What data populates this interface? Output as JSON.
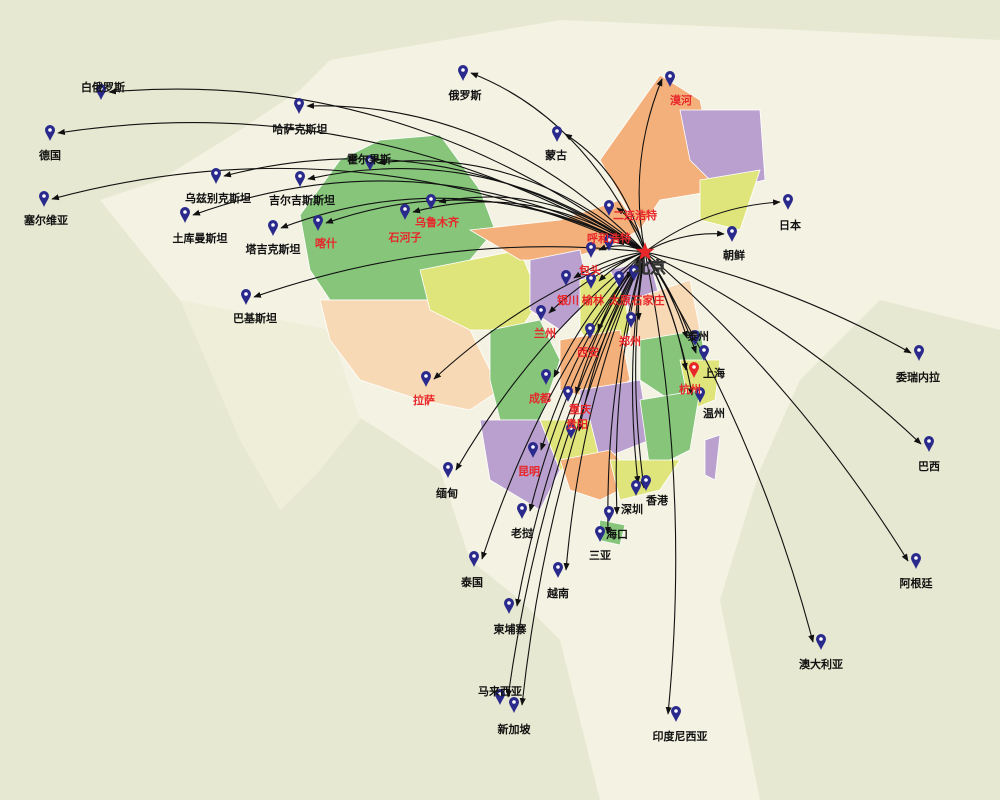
{
  "hub": {
    "name": "北京",
    "color": "#ffffff",
    "star_color": "#e8272a"
  },
  "colors": {
    "domestic_label": "#e8272a",
    "foreign_label": "#111111",
    "marker": "#2a2a8c",
    "highlight_marker": "#e8272a",
    "arrow": "#111111",
    "background": "#e7e8d1",
    "land": "#f3f2e3",
    "province_palette": [
      "#86c57a",
      "#f4b07a",
      "#b9a0cf",
      "#dfe57a",
      "#f8d9b6"
    ]
  },
  "cities": [
    {
      "name": "白俄罗斯",
      "type": "foreign"
    },
    {
      "name": "德国",
      "type": "foreign"
    },
    {
      "name": "塞尔维亚",
      "type": "foreign"
    },
    {
      "name": "哈萨克斯坦",
      "type": "foreign"
    },
    {
      "name": "俄罗斯",
      "type": "foreign"
    },
    {
      "name": "蒙古",
      "type": "foreign"
    },
    {
      "name": "霍尔果斯",
      "type": "foreign"
    },
    {
      "name": "乌兹别克斯坦",
      "type": "foreign"
    },
    {
      "name": "吉尔吉斯斯坦",
      "type": "foreign"
    },
    {
      "name": "土库曼斯坦",
      "type": "foreign"
    },
    {
      "name": "塔吉克斯坦",
      "type": "foreign"
    },
    {
      "name": "巴基斯坦",
      "type": "foreign"
    },
    {
      "name": "日本",
      "type": "foreign"
    },
    {
      "name": "朝鲜",
      "type": "foreign"
    },
    {
      "name": "泰州",
      "type": "foreign"
    },
    {
      "name": "上海",
      "type": "foreign"
    },
    {
      "name": "温州",
      "type": "foreign"
    },
    {
      "name": "委瑞内拉",
      "type": "foreign"
    },
    {
      "name": "巴西",
      "type": "foreign"
    },
    {
      "name": "阿根廷",
      "type": "foreign"
    },
    {
      "name": "澳大利亚",
      "type": "foreign"
    },
    {
      "name": "印度尼西亚",
      "type": "foreign"
    },
    {
      "name": "新加坡",
      "type": "foreign"
    },
    {
      "name": "马来西亚",
      "type": "foreign"
    },
    {
      "name": "柬埔寨",
      "type": "foreign"
    },
    {
      "name": "越南",
      "type": "foreign"
    },
    {
      "name": "泰国",
      "type": "foreign"
    },
    {
      "name": "缅甸",
      "type": "foreign"
    },
    {
      "name": "老挝",
      "type": "foreign"
    },
    {
      "name": "三亚",
      "type": "foreign"
    },
    {
      "name": "海口",
      "type": "foreign"
    },
    {
      "name": "深圳",
      "type": "foreign"
    },
    {
      "name": "香港",
      "type": "foreign"
    },
    {
      "name": "漠河",
      "type": "domestic"
    },
    {
      "name": "二连浩特",
      "type": "domestic"
    },
    {
      "name": "呼和浩特",
      "type": "domestic"
    },
    {
      "name": "包头",
      "type": "domestic"
    },
    {
      "name": "银川",
      "type": "domestic"
    },
    {
      "name": "榆林",
      "type": "domestic"
    },
    {
      "name": "太原",
      "type": "domestic"
    },
    {
      "name": "石家庄",
      "type": "domestic"
    },
    {
      "name": "兰州",
      "type": "domestic"
    },
    {
      "name": "西安",
      "type": "domestic"
    },
    {
      "name": "郑州",
      "type": "domestic"
    },
    {
      "name": "成都",
      "type": "domestic"
    },
    {
      "name": "重庆",
      "type": "domestic"
    },
    {
      "name": "贵阳",
      "type": "domestic"
    },
    {
      "name": "昆明",
      "type": "domestic"
    },
    {
      "name": "拉萨",
      "type": "domestic"
    },
    {
      "name": "杭州",
      "type": "domestic",
      "highlight": true
    },
    {
      "name": "喀什",
      "type": "domestic"
    },
    {
      "name": "石河子",
      "type": "domestic"
    },
    {
      "name": "乌鲁木齐",
      "type": "domestic"
    }
  ]
}
